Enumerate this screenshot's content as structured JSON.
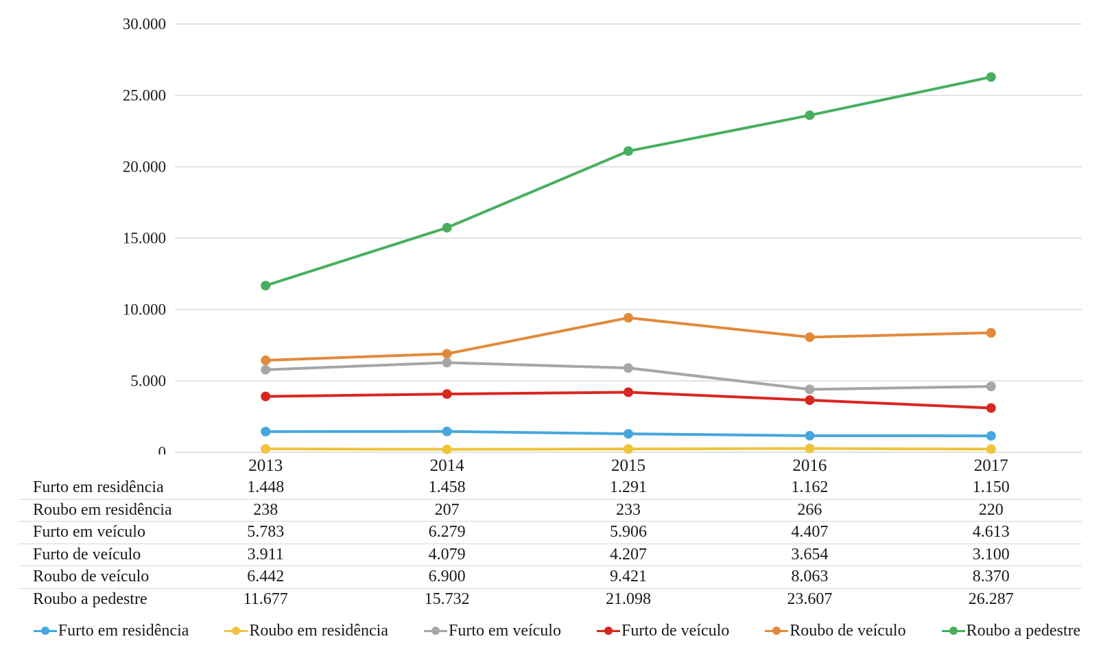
{
  "chart_data": {
    "type": "line",
    "title": "",
    "xlabel": "",
    "ylabel": "",
    "categories": [
      "2013",
      "2014",
      "2015",
      "2016",
      "2017"
    ],
    "series": [
      {
        "name": "Furto em residência",
        "color": "#45a7dd",
        "values": [
          1448,
          1458,
          1291,
          1162,
          1150
        ]
      },
      {
        "name": "Roubo em residência",
        "color": "#f0c33c",
        "values": [
          238,
          207,
          233,
          266,
          220
        ]
      },
      {
        "name": "Furto em veículo",
        "color": "#a6a6a6",
        "values": [
          5783,
          6279,
          5906,
          4407,
          4613
        ]
      },
      {
        "name": "Furto de veículo",
        "color": "#d9261f",
        "values": [
          3911,
          4079,
          4207,
          3654,
          3100
        ]
      },
      {
        "name": "Roubo de veículo",
        "color": "#e18a3b",
        "values": [
          6442,
          6900,
          9421,
          8063,
          8370
        ]
      },
      {
        "name": "Roubo a pedestre",
        "color": "#47af5e",
        "values": [
          11677,
          15732,
          21098,
          23607,
          26287
        ]
      }
    ],
    "ylim": [
      0,
      30000
    ],
    "ytick_step": 5000,
    "ytick_labels": [
      "0",
      "5.000",
      "10.000",
      "15.000",
      "20.000",
      "25.000",
      "30.000"
    ],
    "grid": "horizontal-only",
    "gridline_color": "#d9d9d9",
    "legend_position": "bottom",
    "marker": "circle"
  },
  "table": {
    "header_years": [
      "2013",
      "2014",
      "2015",
      "2016",
      "2017"
    ],
    "rows": [
      {
        "label": "Furto em residência",
        "values": [
          "1.448",
          "1.458",
          "1.291",
          "1.162",
          "1.150"
        ]
      },
      {
        "label": "Roubo em residência",
        "values": [
          "238",
          "207",
          "233",
          "266",
          "220"
        ]
      },
      {
        "label": "Furto em veículo",
        "values": [
          "5.783",
          "6.279",
          "5.906",
          "4.407",
          "4.613"
        ]
      },
      {
        "label": "Furto de veículo",
        "values": [
          "3.911",
          "4.079",
          "4.207",
          "3.654",
          "3.100"
        ]
      },
      {
        "label": "Roubo de veículo",
        "values": [
          "6.442",
          "6.900",
          "9.421",
          "8.063",
          "8.370"
        ]
      },
      {
        "label": "Roubo a pedestre",
        "values": [
          "11.677",
          "15.732",
          "21.098",
          "23.607",
          "26.287"
        ]
      }
    ]
  },
  "legend": {
    "items": [
      {
        "label": "Furto em residência",
        "color": "#45a7dd"
      },
      {
        "label": "Roubo em residência",
        "color": "#f0c33c"
      },
      {
        "label": "Furto em veículo",
        "color": "#a6a6a6"
      },
      {
        "label": "Furto de veículo",
        "color": "#d9261f"
      },
      {
        "label": "Roubo de veículo",
        "color": "#e18a3b"
      },
      {
        "label": "Roubo a pedestre",
        "color": "#47af5e"
      }
    ]
  },
  "colors": {
    "background": "#ffffff",
    "text": "#1a1a1a",
    "gridline": "#d9d9d9",
    "table_border": "#d6d6d6"
  }
}
